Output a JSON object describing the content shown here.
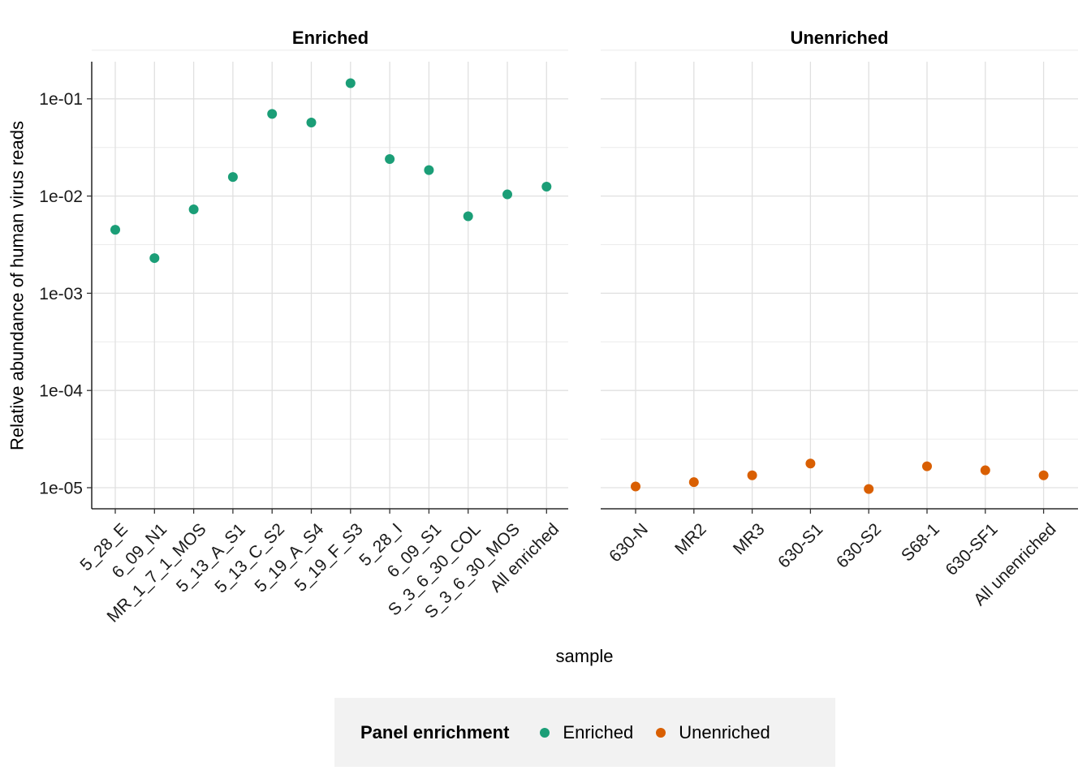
{
  "chart_data": {
    "type": "scatter",
    "y_label": "Relative abundance of human virus reads",
    "x_label": "sample",
    "y_scale": "log10",
    "y_ticks": [
      "1e-05",
      "1e-04",
      "1e-03",
      "1e-02",
      "1e-01"
    ],
    "y_tick_values": [
      1e-05,
      0.0001,
      0.001,
      0.01,
      0.1
    ],
    "ylim": [
      5e-06,
      0.25
    ],
    "grid": true,
    "legend": {
      "title": "Panel enrichment",
      "position": "bottom",
      "entries": [
        {
          "label": "Enriched",
          "color": "#1b9e77"
        },
        {
          "label": "Unenriched",
          "color": "#d95f02"
        }
      ]
    },
    "panels": [
      {
        "title": "Enriched",
        "color": "#1b9e77",
        "categories": [
          "5_28_E",
          "6_09_N1",
          "MR_1_7_1_MOS",
          "5_13_A_S1",
          "5_13_C_S2",
          "5_19_A_S4",
          "5_19_F_S3",
          "5_28_I",
          "6_09_S1",
          "S_3_6_30_COL",
          "S_3_6_30_MOS",
          "All enriched"
        ],
        "values": [
          0.0045,
          0.0023,
          0.0073,
          0.0157,
          0.07,
          0.057,
          0.145,
          0.024,
          0.0185,
          0.0062,
          0.0104,
          0.0125
        ]
      },
      {
        "title": "Unenriched",
        "color": "#d95f02",
        "categories": [
          "630-N",
          "MR2",
          "MR3",
          "630-S1",
          "630-S2",
          "S68-1",
          "630-SF1",
          "All unenriched"
        ],
        "values": [
          1.03e-05,
          1.14e-05,
          1.34e-05,
          1.77e-05,
          9.7e-06,
          1.66e-05,
          1.51e-05,
          1.34e-05
        ]
      }
    ]
  }
}
